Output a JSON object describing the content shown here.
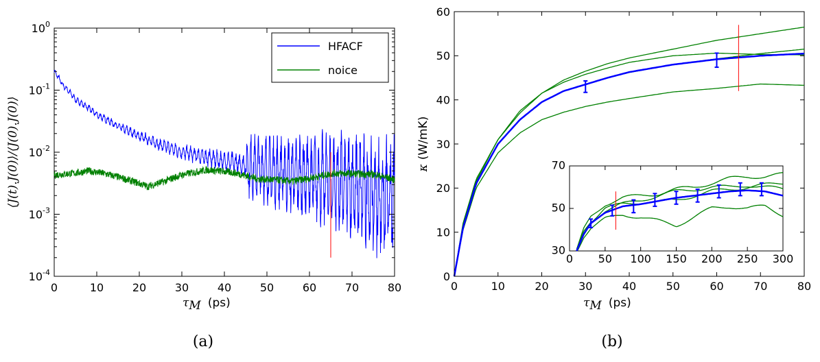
{
  "chart_data": [
    {
      "id": "a",
      "type": "line",
      "caption": "(a)",
      "xlabel_symbol": "τ",
      "xlabel_sub": "M",
      "xlabel_unit": "(ps)",
      "ylabel": "⟨J(t).J(0)⟩/⟨J(0).J(0)⟩",
      "xlim": [
        0,
        80
      ],
      "ylim": [
        0.0001,
        1
      ],
      "yscale": "log",
      "xticks": [
        "0",
        "10",
        "20",
        "30",
        "40",
        "50",
        "60",
        "70",
        "80"
      ],
      "yticks": [
        {
          "base": "10",
          "exp": "0"
        },
        {
          "base": "10",
          "exp": "-1"
        },
        {
          "base": "10",
          "exp": "-2"
        },
        {
          "base": "10",
          "exp": "-3"
        },
        {
          "base": "10",
          "exp": "-4"
        }
      ],
      "legend": {
        "position": "top-right",
        "entries": [
          "HFACF",
          "noice"
        ]
      },
      "series": [
        {
          "name": "HFACF",
          "color": "#0000ff",
          "x": [
            0,
            2,
            5,
            10,
            15,
            20,
            25,
            30,
            35,
            40,
            45,
            50,
            55,
            60,
            65,
            70,
            75,
            80
          ],
          "y": [
            0.2,
            0.12,
            0.07,
            0.04,
            0.026,
            0.018,
            0.013,
            0.01,
            0.0085,
            0.0072,
            0.0062,
            0.0052,
            0.0045,
            0.004,
            0.0035,
            0.0028,
            0.002,
            0.0015
          ]
        },
        {
          "name": "noice",
          "color": "#008000",
          "x": [
            0,
            5,
            8,
            12,
            16,
            22,
            26,
            30,
            36,
            42,
            48,
            52,
            56,
            60,
            66,
            70,
            75,
            80
          ],
          "y": [
            0.0043,
            0.0046,
            0.005,
            0.0045,
            0.0038,
            0.0028,
            0.0034,
            0.0043,
            0.0052,
            0.0047,
            0.0037,
            0.0036,
            0.0034,
            0.0038,
            0.0046,
            0.0045,
            0.0044,
            0.0036
          ]
        }
      ],
      "vline": {
        "x": 65,
        "color": "#ff0000",
        "y_from": 0.0002,
        "y_to": 0.01
      }
    },
    {
      "id": "b",
      "type": "line",
      "caption": "(b)",
      "xlabel_symbol": "τ",
      "xlabel_sub": "M",
      "xlabel_unit": "(ps)",
      "ylabel_symbol": "κ",
      "ylabel_unit": "(W/mK)",
      "xlim": [
        0,
        80
      ],
      "ylim": [
        0,
        60
      ],
      "xticks": [
        0,
        10,
        20,
        30,
        40,
        50,
        60,
        70,
        80
      ],
      "yticks": [
        0,
        10,
        20,
        30,
        40,
        50,
        60
      ],
      "series": [
        {
          "color": "#008000",
          "x": [
            0,
            2,
            5,
            10,
            15,
            20,
            25,
            30,
            35,
            40,
            50,
            60,
            70,
            80
          ],
          "y": [
            0,
            12,
            22,
            31,
            37,
            41.5,
            44.5,
            46.5,
            48.2,
            49.5,
            51.5,
            53.5,
            55,
            56.5
          ]
        },
        {
          "color": "#008000",
          "x": [
            0,
            2,
            5,
            10,
            15,
            20,
            25,
            30,
            35,
            40,
            50,
            60,
            70,
            80
          ],
          "y": [
            0,
            11.5,
            21.5,
            31,
            37.5,
            41.5,
            44,
            45.8,
            47.2,
            48.5,
            50,
            50.6,
            50.3,
            50.2
          ]
        },
        {
          "color": "#008000",
          "x": [
            0,
            2,
            5,
            10,
            15,
            20,
            25,
            30,
            35,
            40,
            50,
            60,
            70,
            80
          ],
          "y": [
            0,
            11,
            21,
            30,
            35.5,
            39.5,
            42,
            43.5,
            45,
            46.2,
            48,
            49.3,
            50.5,
            51.5
          ]
        },
        {
          "color": "#008000",
          "x": [
            0,
            2,
            5,
            10,
            15,
            20,
            25,
            30,
            35,
            40,
            50,
            60,
            70,
            80
          ],
          "y": [
            0,
            10.5,
            20,
            28,
            32.5,
            35.5,
            37.2,
            38.5,
            39.5,
            40.3,
            41.8,
            42.6,
            43.6,
            43.3
          ]
        },
        {
          "color": "#0000ff",
          "width": 2.5,
          "x": [
            0,
            2,
            5,
            10,
            15,
            20,
            25,
            30,
            35,
            40,
            50,
            60,
            70,
            80
          ],
          "y": [
            0,
            11,
            21,
            30,
            35.5,
            39.5,
            42,
            43.5,
            45,
            46.3,
            48,
            49.2,
            50,
            50.5
          ]
        }
      ],
      "errorbars": {
        "color": "#0000ff",
        "points": [
          {
            "x": 30,
            "y": 43,
            "err": 1.3
          },
          {
            "x": 60,
            "y": 49,
            "err": 1.6
          }
        ]
      },
      "vline": {
        "x": 65,
        "color": "#ff0000",
        "y_from": 42,
        "y_to": 57
      },
      "inset": {
        "xlim": [
          0,
          300
        ],
        "ylim": [
          30,
          70
        ],
        "xticks": [
          0,
          50,
          100,
          150,
          200,
          250,
          300
        ],
        "yticks": [
          30,
          50,
          70
        ],
        "series": [
          {
            "color": "#008000",
            "x": [
              10,
              20,
              30,
              50,
              75,
              100,
              125,
              150,
              175,
              200,
              225,
              250,
              275,
              300
            ],
            "y": [
              30,
              40,
              46,
              52,
              55,
              56,
              57,
              59,
              60,
              62,
              64,
              65,
              65,
              66
            ]
          },
          {
            "color": "#008000",
            "x": [
              10,
              20,
              30,
              50,
              75,
              100,
              125,
              150,
              175,
              200,
              225,
              250,
              275,
              300
            ],
            "y": [
              30,
              39,
              44,
              49,
              52,
              54,
              56,
              58,
              59,
              60,
              60,
              61,
              60,
              59
            ]
          },
          {
            "color": "#008000",
            "x": [
              10,
              20,
              30,
              50,
              75,
              100,
              125,
              150,
              175,
              200,
              225,
              250,
              275,
              300
            ],
            "y": [
              30,
              38,
              44,
              50,
              52,
              53,
              53,
              54,
              56,
              58,
              59,
              60,
              61,
              62
            ]
          },
          {
            "color": "#008000",
            "x": [
              10,
              20,
              30,
              50,
              75,
              100,
              125,
              150,
              175,
              200,
              225,
              250,
              275,
              300
            ],
            "y": [
              30,
              37,
              41,
              45,
              47,
              46,
              44,
              42,
              46,
              50,
              51,
              50,
              51,
              47
            ]
          },
          {
            "color": "#0000ff",
            "width": 2.5,
            "x": [
              10,
              20,
              30,
              50,
              75,
              100,
              125,
              150,
              175,
              200,
              225,
              250,
              275,
              300
            ],
            "y": [
              30,
              38,
              43,
              48,
              51,
              52,
              53.5,
              55,
              56,
              57,
              58,
              58.5,
              58,
              56
            ]
          }
        ],
        "errorbars": {
          "color": "#0000ff",
          "points": [
            {
              "x": 30,
              "y": 43,
              "err": 2
            },
            {
              "x": 60,
              "y": 49,
              "err": 2.5
            },
            {
              "x": 90,
              "y": 51,
              "err": 3
            },
            {
              "x": 120,
              "y": 54,
              "err": 3
            },
            {
              "x": 150,
              "y": 55,
              "err": 3
            },
            {
              "x": 180,
              "y": 56,
              "err": 3
            },
            {
              "x": 210,
              "y": 58,
              "err": 3
            },
            {
              "x": 240,
              "y": 59,
              "err": 3
            },
            {
              "x": 270,
              "y": 59,
              "err": 3
            }
          ]
        },
        "vline": {
          "x": 65,
          "color": "#ff0000",
          "y_from": 40,
          "y_to": 58
        }
      }
    }
  ]
}
